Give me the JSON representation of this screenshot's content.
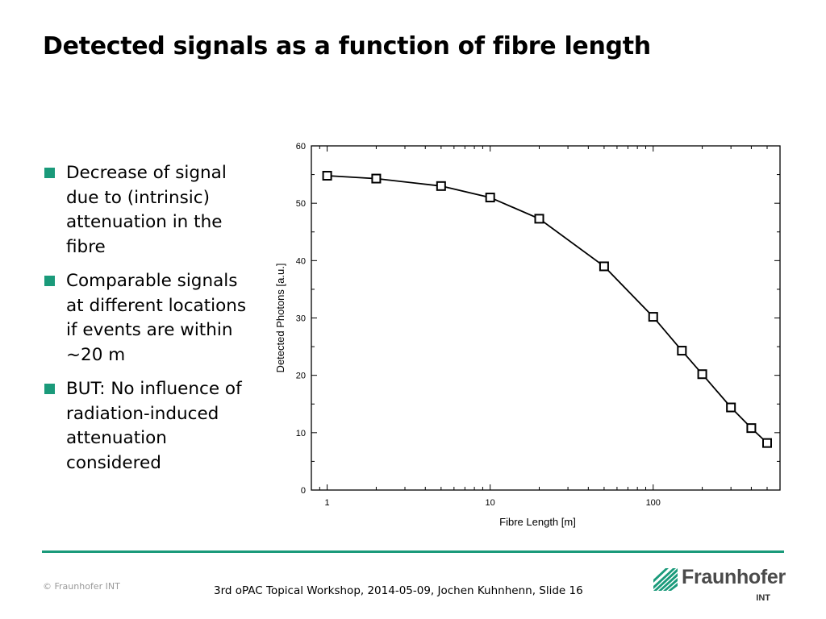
{
  "slide": {
    "title": "Detected signals as a function of fibre length",
    "bullets": [
      "Decrease of signal due to (intrinsic) attenuation in the fibre",
      "Comparable signals at different locations if events are within ~20 m",
      "BUT: No influence of radiation-induced attenuation considered"
    ],
    "copyright": "© Fraunhofer INT",
    "footer": "3rd oPAC Topical Workshop, 2014-05-09, Jochen Kuhnhenn, Slide 16",
    "logo": {
      "name": "Fraunhofer",
      "sub": "INT",
      "color": "#1a9a7a"
    }
  },
  "chart_data": {
    "type": "line",
    "title": "",
    "xlabel": "Fibre Length [m]",
    "ylabel": "Detected Photons [a.u.]",
    "xscale": "log",
    "xlim": [
      0.8,
      600
    ],
    "ylim": [
      0,
      60
    ],
    "xticks": [
      1,
      10,
      100
    ],
    "yticks": [
      0,
      10,
      20,
      30,
      40,
      50,
      60
    ],
    "marker": "open-square",
    "grid": false,
    "series": [
      {
        "x": [
          1,
          2,
          5,
          10,
          20,
          50,
          100,
          150,
          200,
          300,
          400,
          500
        ],
        "y": [
          54.8,
          54.3,
          53.0,
          51.0,
          47.3,
          39.0,
          30.2,
          24.3,
          20.2,
          14.4,
          10.8,
          8.2
        ]
      }
    ],
    "colors": {
      "line": "#000000",
      "marker_fill": "#ffffff"
    }
  }
}
